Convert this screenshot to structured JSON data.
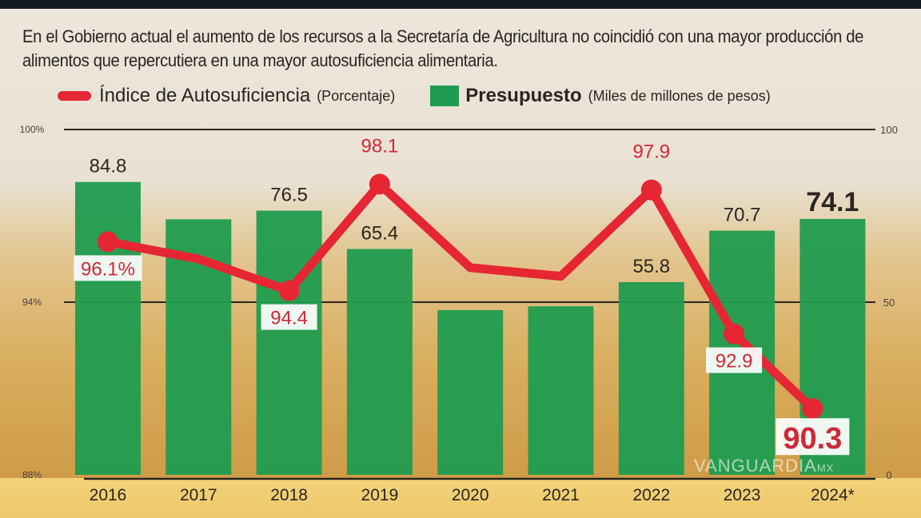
{
  "subtitle": "En el Gobierno actual el aumento de los recursos a la Secretaría de Agricultura no coincidió con una mayor producción de alimentos que repercutiera en una mayor autosuficiencia alimentaria.",
  "watermark": "VANGUARDIA",
  "watermark_suffix": "MX",
  "colors": {
    "line": "#e62633",
    "bar": "#1f9c4f"
  },
  "chart_data": {
    "type": "bar+line",
    "categories": [
      "2016",
      "2017",
      "2018",
      "2019",
      "2020",
      "2021",
      "2022",
      "2023",
      "2024*"
    ],
    "legend": {
      "placement": "top-left",
      "line_label": "Índice de Autosuficiencia",
      "line_unit": "(Porcentaje)",
      "bar_label": "Presupuesto",
      "bar_unit": "(Miles de millones de pesos)"
    },
    "series": [
      {
        "name": "Presupuesto",
        "type": "bar",
        "axis": "right",
        "values": [
          84.8,
          74.0,
          76.5,
          65.4,
          47.7,
          48.8,
          55.8,
          70.7,
          74.1
        ],
        "labels": [
          "84.8",
          "",
          "76.5",
          "65.4",
          "",
          "",
          "55.8",
          "70.7",
          "74.1"
        ]
      },
      {
        "name": "Índice de Autosuficiencia",
        "type": "line",
        "axis": "left",
        "values": [
          96.1,
          95.5,
          94.4,
          98.1,
          95.2,
          94.9,
          97.9,
          92.9,
          90.3
        ],
        "labels": [
          "96.1%",
          "",
          "94.4",
          "98.1",
          "",
          "",
          "97.9",
          "92.9",
          "90.3"
        ]
      }
    ],
    "left_axis": {
      "range": [
        88,
        100
      ],
      "ticks": [
        "88%",
        "94%",
        "100%"
      ]
    },
    "right_axis": {
      "range": [
        0,
        100
      ],
      "ticks": [
        "0",
        "50",
        "100"
      ]
    },
    "grid": true
  }
}
